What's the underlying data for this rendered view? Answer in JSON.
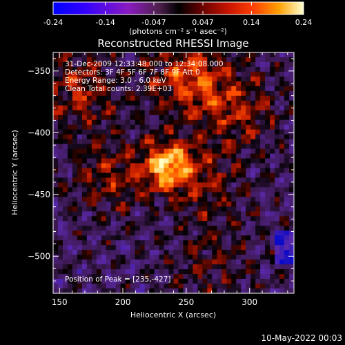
{
  "chart_data": {
    "type": "heatmap",
    "title": "Reconstructed RHESSI Image",
    "xlabel": "Heliocentric X (arcsec)",
    "ylabel": "Heliocentric Y (arcsec)",
    "xlim": [
      145,
      335
    ],
    "ylim": [
      -530,
      -335
    ],
    "xticks": [
      150,
      200,
      250,
      300
    ],
    "yticks": [
      -350,
      -400,
      -450,
      -500
    ],
    "colorbar": {
      "range": [
        -0.24,
        0.24
      ],
      "ticks": [
        "-0.24",
        "-0.14",
        "-0.047",
        "0.047",
        "0.14",
        "0.24"
      ],
      "unit_label": "(photons cm⁻² s⁻¹ asec⁻²)"
    },
    "annotations": [
      "31-Dec-2009 12:33:48.000 to 12:34:08.000",
      "Detectors: 3F 4F 5F 6F 7F 8F 9F Att 0",
      "Energy Range: 3.0 - 6.0 keV",
      "Clean     Total counts: 2.39E+03"
    ],
    "peak_label": "Position of Peak = [235,-427]",
    "peak": {
      "x": 235,
      "y": -427,
      "value": 0.24
    },
    "secondary_peaks": [
      {
        "x": 252,
        "y": -355,
        "value": 0.16
      },
      {
        "x": 290,
        "y": -382,
        "value": 0.11
      },
      {
        "x": 165,
        "y": -365,
        "value": 0.12
      },
      {
        "x": 190,
        "y": -435,
        "value": 0.1
      },
      {
        "x": 265,
        "y": -440,
        "value": 0.09
      },
      {
        "x": 270,
        "y": -505,
        "value": 0.07
      }
    ],
    "grid": false
  },
  "footer_date": "10-May-2022 00:03"
}
